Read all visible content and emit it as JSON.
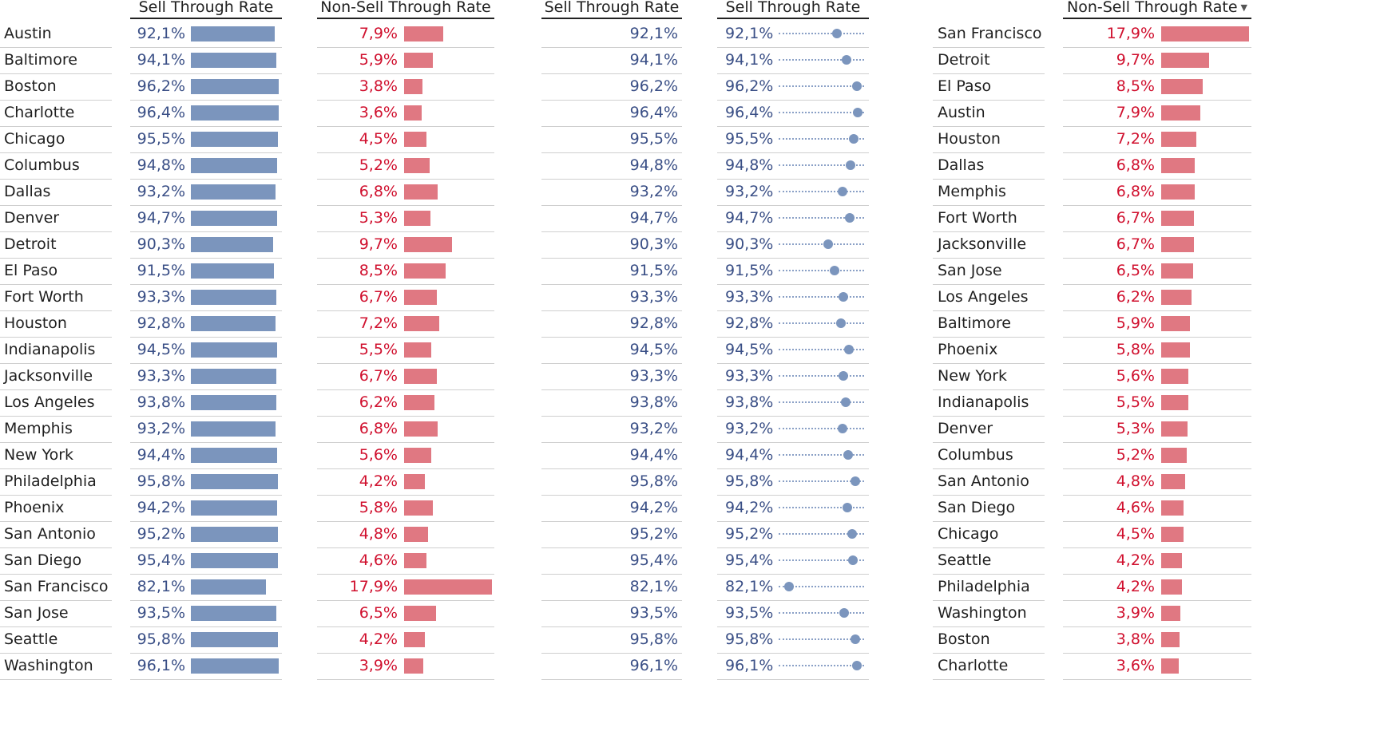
{
  "headers": {
    "h1": "Sell Through Rate",
    "h2": "Non-Sell Through Rate",
    "h3": "Sell Through Rate",
    "h4": "Sell Through Rate",
    "h5": "Non-Sell Through Rate"
  },
  "colors": {
    "blue_bar": "#7b95bd",
    "red_bar": "#e07882",
    "blue_text": "#3a4f86",
    "red_text": "#d0102e"
  },
  "sort_icon": "sort-descending-icon",
  "chart_data": [
    {
      "type": "bar",
      "title": "",
      "column_headers": [
        "Sell Through Rate",
        "Non-Sell Through Rate",
        "Sell Through Rate",
        "Sell Through Rate"
      ],
      "categories": [
        "Austin",
        "Baltimore",
        "Boston",
        "Charlotte",
        "Chicago",
        "Columbus",
        "Dallas",
        "Denver",
        "Detroit",
        "El Paso",
        "Fort Worth",
        "Houston",
        "Indianapolis",
        "Jacksonville",
        "Los Angeles",
        "Memphis",
        "New York",
        "Philadelphia",
        "Phoenix",
        "San Antonio",
        "San Diego",
        "San Francisco",
        "San Jose",
        "Seattle",
        "Washington"
      ],
      "series": [
        {
          "name": "Sell Through Rate",
          "values": [
            92.1,
            94.1,
            96.2,
            96.4,
            95.5,
            94.8,
            93.2,
            94.7,
            90.3,
            91.5,
            93.3,
            92.8,
            94.5,
            93.3,
            93.8,
            93.2,
            94.4,
            95.8,
            94.2,
            95.2,
            95.4,
            82.1,
            93.5,
            95.8,
            96.1
          ],
          "labels": [
            "92,1%",
            "94,1%",
            "96,2%",
            "96,4%",
            "95,5%",
            "94,8%",
            "93,2%",
            "94,7%",
            "90,3%",
            "91,5%",
            "93,3%",
            "92,8%",
            "94,5%",
            "93,3%",
            "93,8%",
            "93,2%",
            "94,4%",
            "95,8%",
            "94,2%",
            "95,2%",
            "95,4%",
            "82,1%",
            "93,5%",
            "95,8%",
            "96,1%"
          ]
        },
        {
          "name": "Non-Sell Through Rate",
          "values": [
            7.9,
            5.9,
            3.8,
            3.6,
            4.5,
            5.2,
            6.8,
            5.3,
            9.7,
            8.5,
            6.7,
            7.2,
            5.5,
            6.7,
            6.2,
            6.8,
            5.6,
            4.2,
            5.8,
            4.8,
            4.6,
            17.9,
            6.5,
            4.2,
            3.9
          ],
          "labels": [
            "7,9%",
            "5,9%",
            "3,8%",
            "3,6%",
            "4,5%",
            "5,2%",
            "6,8%",
            "5,3%",
            "9,7%",
            "8,5%",
            "6,7%",
            "7,2%",
            "5,5%",
            "6,7%",
            "6,2%",
            "6,8%",
            "5,6%",
            "4,2%",
            "5,8%",
            "4,8%",
            "4,6%",
            "17,9%",
            "6,5%",
            "4,2%",
            "3,9%"
          ]
        }
      ],
      "dot_plot_xlim": [
        80,
        97
      ]
    },
    {
      "type": "bar",
      "title": "",
      "column_headers": [
        "Non-Sell Through Rate"
      ],
      "sort": "descending",
      "categories": [
        "San Francisco",
        "Detroit",
        "El Paso",
        "Austin",
        "Houston",
        "Dallas",
        "Memphis",
        "Fort Worth",
        "Jacksonville",
        "San Jose",
        "Los Angeles",
        "Baltimore",
        "Phoenix",
        "New York",
        "Indianapolis",
        "Denver",
        "Columbus",
        "San Antonio",
        "San Diego",
        "Chicago",
        "Seattle",
        "Philadelphia",
        "Washington",
        "Boston",
        "Charlotte"
      ],
      "series": [
        {
          "name": "Non-Sell Through Rate",
          "values": [
            17.9,
            9.7,
            8.5,
            7.9,
            7.2,
            6.8,
            6.8,
            6.7,
            6.7,
            6.5,
            6.2,
            5.9,
            5.8,
            5.6,
            5.5,
            5.3,
            5.2,
            4.8,
            4.6,
            4.5,
            4.2,
            4.2,
            3.9,
            3.8,
            3.6
          ],
          "labels": [
            "17,9%",
            "9,7%",
            "8,5%",
            "7,9%",
            "7,2%",
            "6,8%",
            "6,8%",
            "6,7%",
            "6,7%",
            "6,5%",
            "6,2%",
            "5,9%",
            "5,8%",
            "5,6%",
            "5,5%",
            "5,3%",
            "5,2%",
            "4,8%",
            "4,6%",
            "4,5%",
            "4,2%",
            "4,2%",
            "3,9%",
            "3,8%",
            "3,6%"
          ]
        }
      ]
    }
  ]
}
